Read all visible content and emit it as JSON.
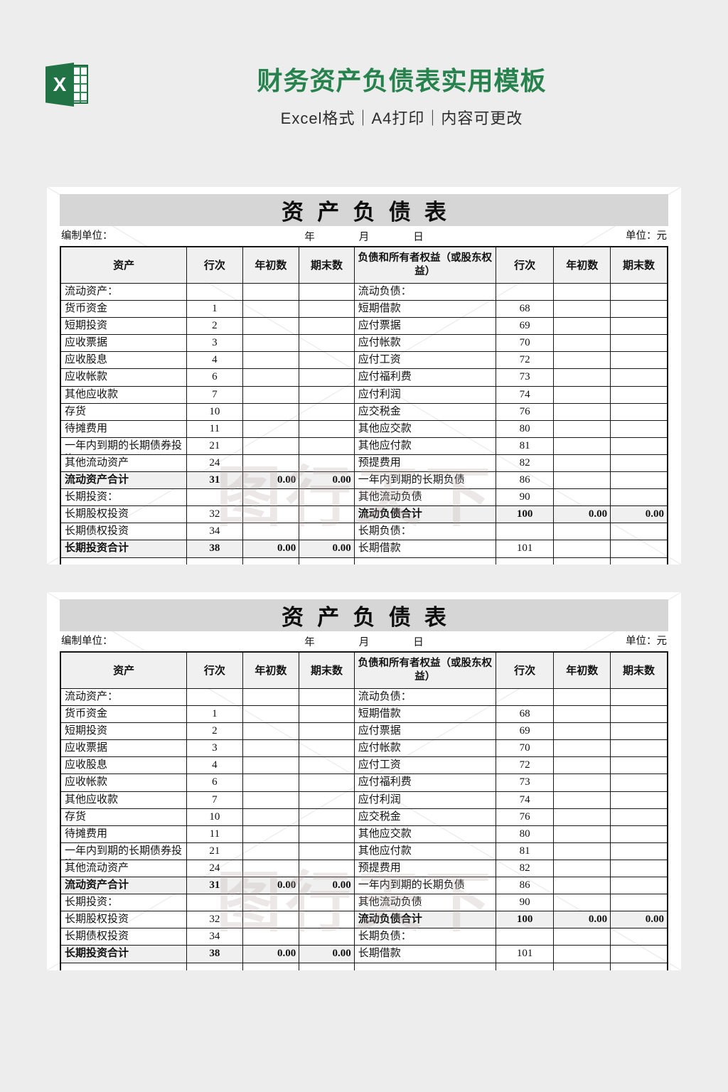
{
  "header": {
    "logo_letter": "X",
    "title": "财务资产负债表实用模板",
    "subtitle": "Excel格式｜A4打印｜内容可更改",
    "accent_green": "#27824d",
    "logo_green": "#217346"
  },
  "watermark": {
    "text": "图行天下"
  },
  "sheet": {
    "title": "资产负债表",
    "prepared_label": "编制单位：",
    "date_year": "年",
    "date_month": "月",
    "date_day": "日",
    "unit_label": "单位：元",
    "columns": [
      "资产",
      "行次",
      "年初数",
      "期末数",
      "负债和所有者权益（或股东权益）",
      "行次",
      "年初数",
      "期末数"
    ],
    "rows": [
      {
        "left": {
          "label": "流动资产：",
          "line": "",
          "begin": "",
          "end": ""
        },
        "right": {
          "label": "流动负债：",
          "line": "",
          "begin": "",
          "end": ""
        }
      },
      {
        "left": {
          "label": "货币资金",
          "line": "1",
          "begin": "",
          "end": ""
        },
        "right": {
          "label": "短期借款",
          "line": "68",
          "begin": "",
          "end": ""
        }
      },
      {
        "left": {
          "label": "短期投资",
          "line": "2",
          "begin": "",
          "end": ""
        },
        "right": {
          "label": "应付票据",
          "line": "69",
          "begin": "",
          "end": ""
        }
      },
      {
        "left": {
          "label": "应收票据",
          "line": "3",
          "begin": "",
          "end": ""
        },
        "right": {
          "label": "应付帐款",
          "line": "70",
          "begin": "",
          "end": ""
        }
      },
      {
        "left": {
          "label": "应收股息",
          "line": "4",
          "begin": "",
          "end": ""
        },
        "right": {
          "label": "应付工资",
          "line": "72",
          "begin": "",
          "end": ""
        }
      },
      {
        "left": {
          "label": "应收帐款",
          "line": "6",
          "begin": "",
          "end": ""
        },
        "right": {
          "label": "应付福利费",
          "line": "73",
          "begin": "",
          "end": ""
        }
      },
      {
        "left": {
          "label": "其他应收款",
          "line": "7",
          "begin": "",
          "end": ""
        },
        "right": {
          "label": "应付利润",
          "line": "74",
          "begin": "",
          "end": ""
        }
      },
      {
        "left": {
          "label": "存货",
          "line": "10",
          "begin": "",
          "end": ""
        },
        "right": {
          "label": "应交税金",
          "line": "76",
          "begin": "",
          "end": ""
        }
      },
      {
        "left": {
          "label": "待摊费用",
          "line": "11",
          "begin": "",
          "end": ""
        },
        "right": {
          "label": "其他应交款",
          "line": "80",
          "begin": "",
          "end": ""
        }
      },
      {
        "left": {
          "label": "一年内到期的长期债券投资",
          "line": "21",
          "begin": "",
          "end": "",
          "wrap": true
        },
        "right": {
          "label": "其他应付款",
          "line": "81",
          "begin": "",
          "end": ""
        }
      },
      {
        "left": {
          "label": "其他流动资产",
          "line": "24",
          "begin": "",
          "end": ""
        },
        "right": {
          "label": "预提费用",
          "line": "82",
          "begin": "",
          "end": ""
        }
      },
      {
        "left": {
          "label": "流动资产合计",
          "line": "31",
          "begin": "0.00",
          "end": "0.00",
          "highlight": true
        },
        "right": {
          "label": "一年内到期的长期负债",
          "line": "86",
          "begin": "",
          "end": ""
        }
      },
      {
        "left": {
          "label": "长期投资：",
          "line": "",
          "begin": "",
          "end": ""
        },
        "right": {
          "label": "其他流动负债",
          "line": "90",
          "begin": "",
          "end": ""
        }
      },
      {
        "left": {
          "label": "长期股权投资",
          "line": "32",
          "begin": "",
          "end": ""
        },
        "right": {
          "label": "流动负债合计",
          "line": "100",
          "begin": "0.00",
          "end": "0.00",
          "highlight": true
        }
      },
      {
        "left": {
          "label": "长期债权投资",
          "line": "34",
          "begin": "",
          "end": ""
        },
        "right": {
          "label": "长期负债：",
          "line": "",
          "begin": "",
          "end": ""
        }
      },
      {
        "left": {
          "label": "长期投资合计",
          "line": "38",
          "begin": "0.00",
          "end": "0.00",
          "highlight": true
        },
        "right": {
          "label": "长期借款",
          "line": "101",
          "begin": "",
          "end": ""
        }
      }
    ]
  }
}
